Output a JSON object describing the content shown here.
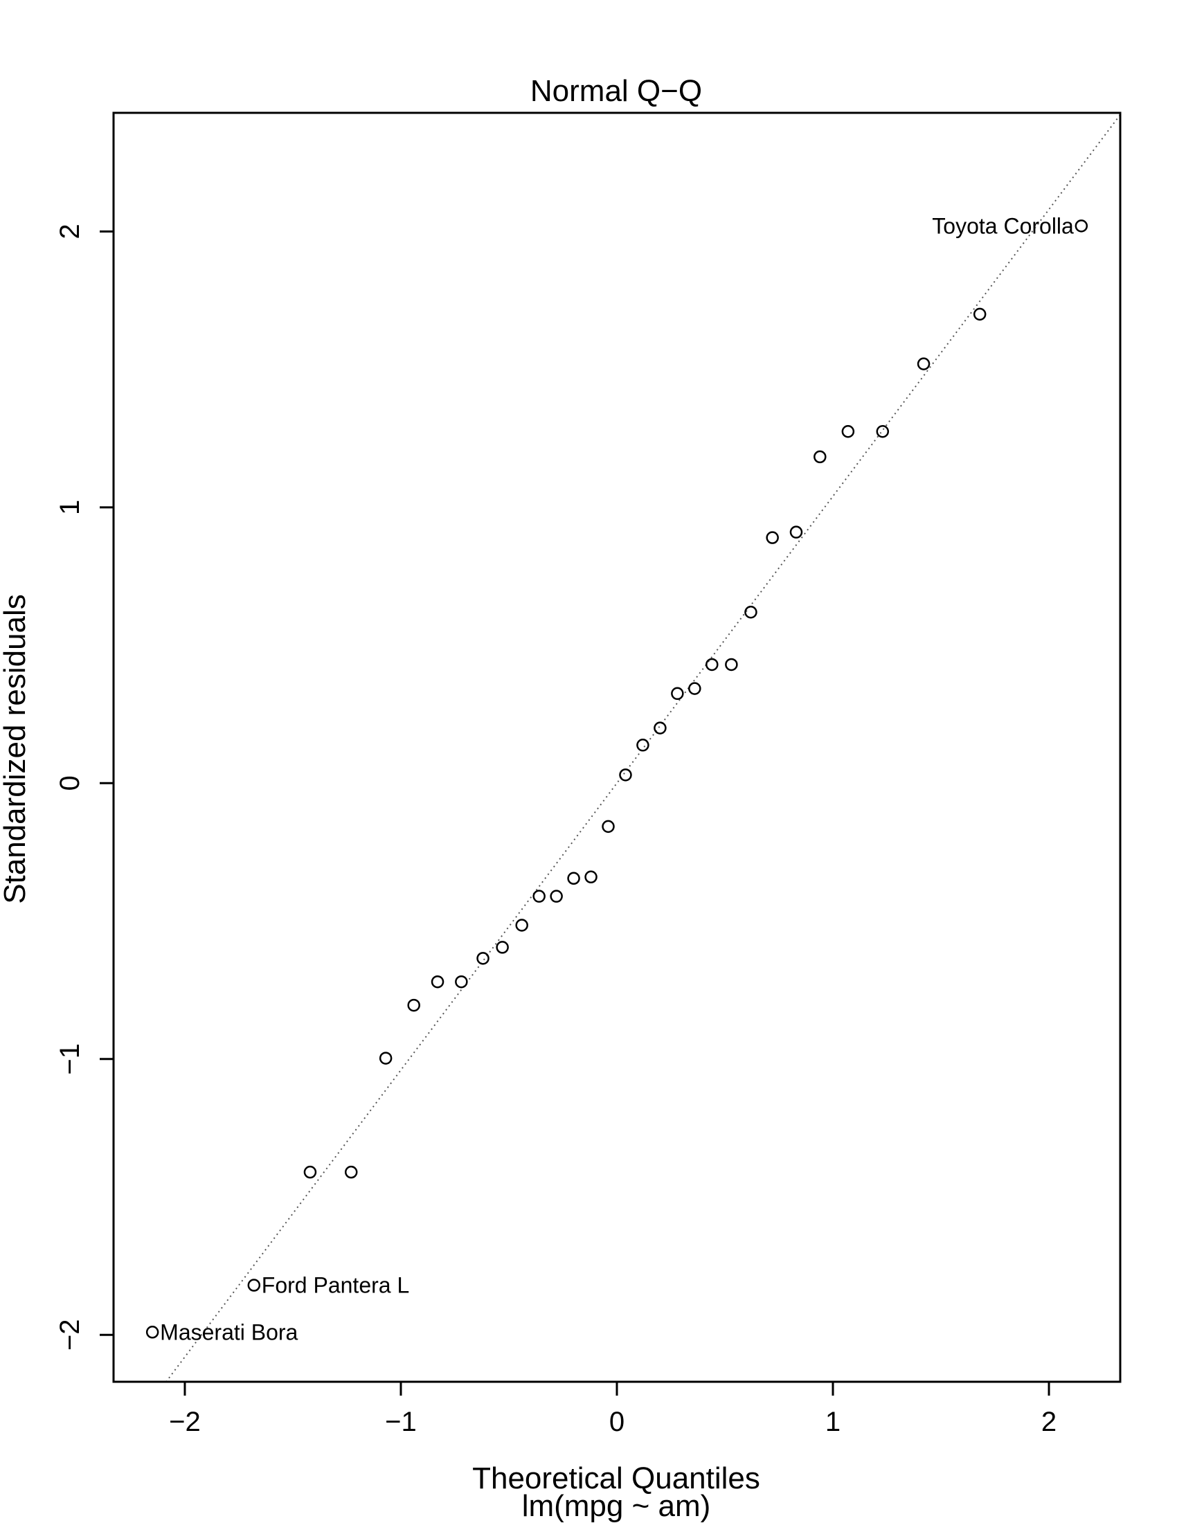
{
  "chart_data": {
    "type": "scatter",
    "title": "Normal Q−Q",
    "xlabel": "Theoretical Quantiles",
    "sublabel": "lm(mpg ~ am)",
    "ylabel": "Standardized residuals",
    "xlim": [
      -2.33,
      2.33
    ],
    "ylim": [
      -2.17,
      2.43
    ],
    "xticks": [
      {
        "value": -2,
        "label": "−2"
      },
      {
        "value": -1,
        "label": "−1"
      },
      {
        "value": 0,
        "label": "0"
      },
      {
        "value": 1,
        "label": "1"
      },
      {
        "value": 2,
        "label": "2"
      }
    ],
    "yticks": [
      {
        "value": -2,
        "label": "−2"
      },
      {
        "value": -1,
        "label": "−1"
      },
      {
        "value": 0,
        "label": "0"
      },
      {
        "value": 1,
        "label": "1"
      },
      {
        "value": 2,
        "label": "2"
      }
    ],
    "reference_line": {
      "intercept": 0.0,
      "slope": 1.04,
      "style": "dotted",
      "color": "#555555"
    },
    "points": [
      {
        "x": -2.15,
        "y": -1.99
      },
      {
        "x": -1.68,
        "y": -1.82
      },
      {
        "x": -1.42,
        "y": -1.41
      },
      {
        "x": -1.23,
        "y": -1.41
      },
      {
        "x": -1.07,
        "y": -0.997
      },
      {
        "x": -0.94,
        "y": -0.805
      },
      {
        "x": -0.83,
        "y": -0.72
      },
      {
        "x": -0.72,
        "y": -0.72
      },
      {
        "x": -0.62,
        "y": -0.635
      },
      {
        "x": -0.53,
        "y": -0.595
      },
      {
        "x": -0.44,
        "y": -0.515
      },
      {
        "x": -0.36,
        "y": -0.41
      },
      {
        "x": -0.28,
        "y": -0.41
      },
      {
        "x": -0.2,
        "y": -0.345
      },
      {
        "x": -0.12,
        "y": -0.34
      },
      {
        "x": -0.04,
        "y": -0.157
      },
      {
        "x": 0.04,
        "y": 0.03
      },
      {
        "x": 0.12,
        "y": 0.138
      },
      {
        "x": 0.2,
        "y": 0.2
      },
      {
        "x": 0.28,
        "y": 0.325
      },
      {
        "x": 0.36,
        "y": 0.343
      },
      {
        "x": 0.44,
        "y": 0.43
      },
      {
        "x": 0.53,
        "y": 0.43
      },
      {
        "x": 0.62,
        "y": 0.62
      },
      {
        "x": 0.72,
        "y": 0.89
      },
      {
        "x": 0.83,
        "y": 0.91
      },
      {
        "x": 0.94,
        "y": 1.183
      },
      {
        "x": 1.07,
        "y": 1.275
      },
      {
        "x": 1.23,
        "y": 1.275
      },
      {
        "x": 1.42,
        "y": 1.52
      },
      {
        "x": 1.68,
        "y": 1.7
      },
      {
        "x": 2.15,
        "y": 2.02
      }
    ],
    "labels": [
      {
        "text": "Toyota Corolla",
        "x": 2.15,
        "y": 2.02,
        "side": "left"
      },
      {
        "text": "Ford Pantera L",
        "x": -1.68,
        "y": -1.82,
        "side": "right"
      },
      {
        "text": "Maserati Bora",
        "x": -2.15,
        "y": -1.99,
        "side": "right"
      }
    ]
  }
}
